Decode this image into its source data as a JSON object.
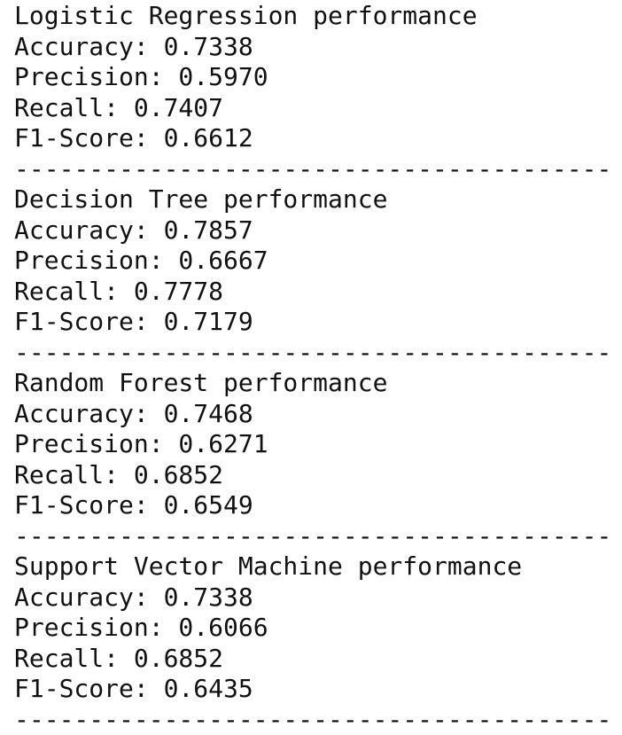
{
  "sections": [
    {
      "title": "Logistic Regression performance",
      "metrics": [
        {
          "label": "Accuracy:",
          "value": "0.7338"
        },
        {
          "label": "Precision:",
          "value": "0.5970"
        },
        {
          "label": "Recall:",
          "value": "0.7407"
        },
        {
          "label": "F1-Score:",
          "value": "0.6612"
        }
      ],
      "separator": "----------------------------------------"
    },
    {
      "title": "Decision Tree performance",
      "metrics": [
        {
          "label": "Accuracy:",
          "value": "0.7857"
        },
        {
          "label": "Precision:",
          "value": "0.6667"
        },
        {
          "label": "Recall:",
          "value": "0.7778"
        },
        {
          "label": "F1-Score:",
          "value": "0.7179"
        }
      ],
      "separator": "----------------------------------------"
    },
    {
      "title": "Random Forest performance",
      "metrics": [
        {
          "label": "Accuracy:",
          "value": "0.7468"
        },
        {
          "label": "Precision:",
          "value": "0.6271"
        },
        {
          "label": "Recall:",
          "value": "0.6852"
        },
        {
          "label": "F1-Score:",
          "value": "0.6549"
        }
      ],
      "separator": "----------------------------------------"
    },
    {
      "title": "Support Vector Machine performance",
      "metrics": [
        {
          "label": "Accuracy:",
          "value": "0.7338"
        },
        {
          "label": "Precision:",
          "value": "0.6066"
        },
        {
          "label": "Recall:",
          "value": "0.6852"
        },
        {
          "label": "F1-Score:",
          "value": "0.6435"
        }
      ],
      "separator": "----------------------------------------"
    }
  ]
}
